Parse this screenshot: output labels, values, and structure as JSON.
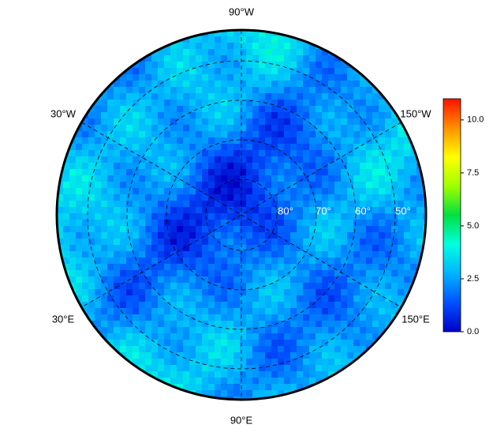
{
  "map": {
    "meridian_labels": [
      "90°W",
      "30°W",
      "150°W",
      "30°E",
      "150°E",
      "90°E"
    ],
    "latitude_labels": [
      "80°",
      "70°",
      "60°",
      "50°"
    ],
    "colorbar": {
      "lim": [
        0,
        11
      ],
      "ticks": [
        {
          "value": 0,
          "label": "0.0"
        },
        {
          "value": 2.5,
          "label": "2.5"
        },
        {
          "value": 5,
          "label": "5.0"
        },
        {
          "value": 7.5,
          "label": "7.5"
        },
        {
          "value": 10,
          "label": "10.0"
        }
      ],
      "colors": [
        "#0000c8",
        "#0050ff",
        "#00b4ff",
        "#00ffe0",
        "#00e040",
        "#a0ff00",
        "#ffff00",
        "#ff9000",
        "#ff1000"
      ]
    }
  }
}
